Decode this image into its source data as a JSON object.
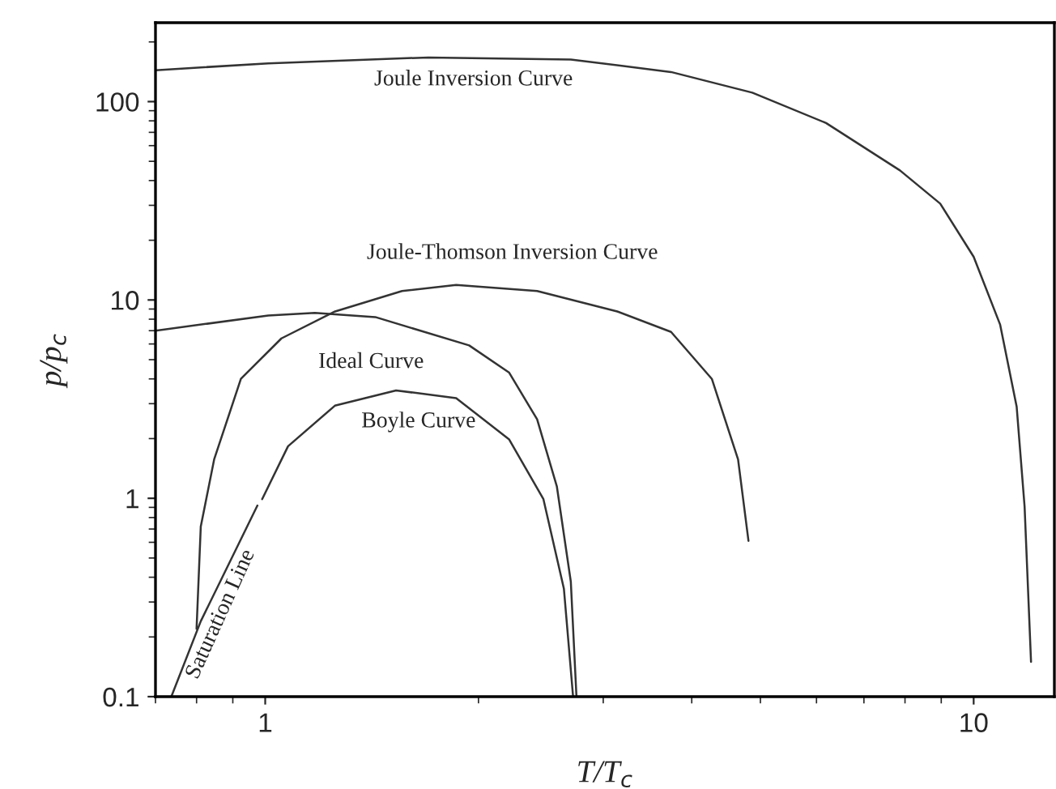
{
  "chart_data": {
    "type": "line",
    "xlabel": "T/T$_{c}$",
    "ylabel": "p/p$_{c}$",
    "log": "xy",
    "grid": false,
    "xlim": [
      0.7,
      13
    ],
    "ylim": [
      0.1,
      250
    ],
    "xticks": [
      1,
      10
    ],
    "yticks": [
      0.1,
      1,
      10,
      100
    ],
    "series": [
      {
        "name": "Joule Inversion Curve",
        "color": "#333333",
        "x": [
          0.7,
          1.01,
          1.7,
          2.7,
          3.74,
          4.87,
          6.19,
          7.87,
          8.97,
          10,
          10.9,
          11.5,
          11.8,
          12.05
        ],
        "values": [
          144,
          156,
          167,
          163,
          141,
          111,
          78,
          45,
          30.6,
          16.5,
          7.5,
          2.9,
          0.91,
          0.15
        ]
      },
      {
        "name": "Joule-Thomson Inversion Curve",
        "color": "#333333",
        "x": [
          0.8,
          0.811,
          0.847,
          0.924,
          1.054,
          1.255,
          1.56,
          1.86,
          2.42,
          3.14,
          3.74,
          4.27,
          4.65,
          4.81
        ],
        "values": [
          0.22,
          0.72,
          1.57,
          4.0,
          6.4,
          8.75,
          11.1,
          11.9,
          11.1,
          8.75,
          6.9,
          4.0,
          1.57,
          0.61
        ]
      },
      {
        "name": "Ideal Curve",
        "color": "#333333",
        "x": [
          0.7,
          1.01,
          1.175,
          1.43,
          1.94,
          2.21,
          2.42,
          2.58,
          2.7,
          2.75
        ],
        "values": [
          7.0,
          8.35,
          8.6,
          8.2,
          5.9,
          4.3,
          2.5,
          1.15,
          0.38,
          0.1
        ]
      },
      {
        "name": "Boyle Curve",
        "color": "#333333",
        "x": [
          0.99,
          1.077,
          1.254,
          1.53,
          1.86,
          2.21,
          2.47,
          2.64,
          2.72
        ],
        "values": [
          0.99,
          1.83,
          2.93,
          3.5,
          3.2,
          1.98,
          0.99,
          0.35,
          0.1
        ]
      },
      {
        "name": "Saturation Line",
        "color": "#333333",
        "x": [
          0.737,
          0.811,
          0.975
        ],
        "values": [
          0.1,
          0.24,
          0.92
        ]
      }
    ]
  }
}
